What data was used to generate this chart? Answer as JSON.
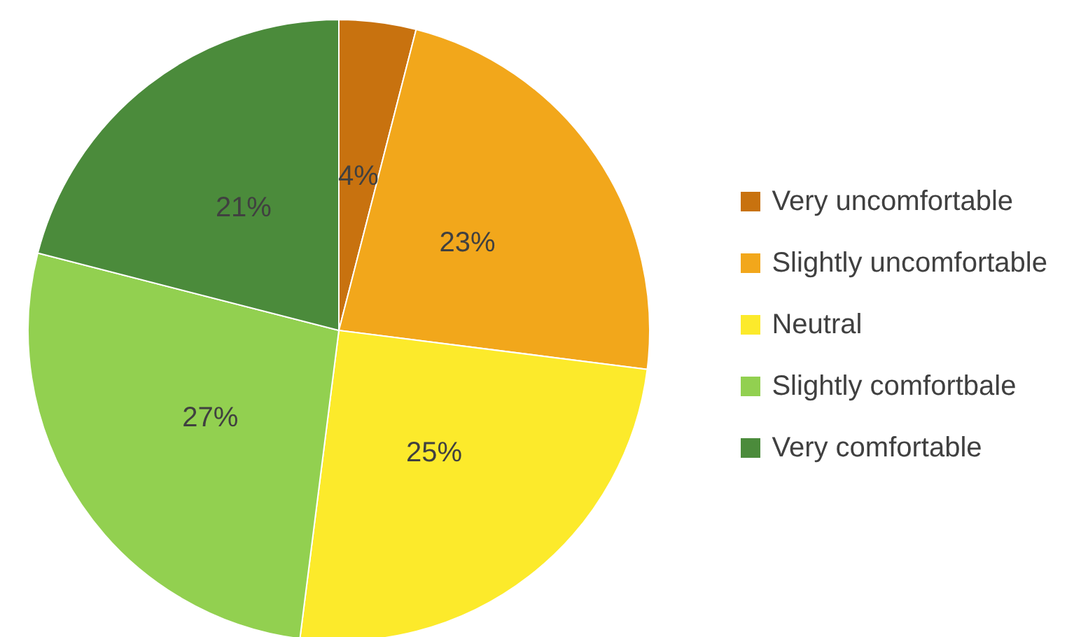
{
  "chart_data": {
    "type": "pie",
    "categories": [
      "Very uncomfortable",
      "Slightly uncomfortable",
      "Neutral",
      "Slightly comfortbale",
      "Very comfortable"
    ],
    "values": [
      4,
      23,
      25,
      27,
      21
    ],
    "colors": [
      "#c8720f",
      "#f2a71b",
      "#fcea2b",
      "#92d050",
      "#4b8b3b"
    ],
    "value_labels": [
      "4%",
      "23%",
      "25%",
      "27%",
      "21%"
    ],
    "legend": "right"
  }
}
